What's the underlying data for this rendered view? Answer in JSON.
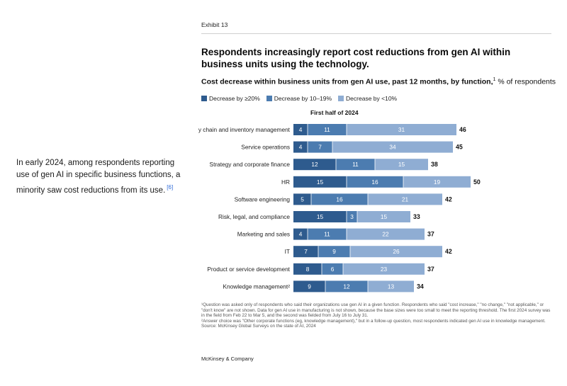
{
  "side_text": {
    "body": "In early 2024, among respondents reporting use of gen AI in specific business functions, a minority saw cost reductions from its use.",
    "ref": "[6]"
  },
  "exhibit_label": "Exhibit 13",
  "brand": "McKinsey & Company",
  "footnotes": {
    "note1": "¹Question was asked only of respondents who said their organizations use gen AI in a given function. Respondents who said \"cost increase,\" \"no change,\" \"not applicable,\" or \"don't know\" are not shown. Data for gen AI use in manufacturing is not shown, because the base sizes were too small to meet the reporting threshold. The first 2024 survey was in the field from Feb 22 to Mar 5, and the second was fielded from July 16 to July 31.",
    "note2": "²Answer choice was \"Other corporate functions (eg, knowledge management),\" but in a follow-up question, most respondents indicated gen AI use in knowledge management.",
    "source": "Source: McKinsey Global Surveys on the state of AI, 2024"
  },
  "colors": {
    "series1": "#2e5b8e",
    "series2": "#4c7cb0",
    "series3": "#8fadd3"
  },
  "chart_data": {
    "type": "bar",
    "orientation": "horizontal",
    "stacked": true,
    "title": "Respondents increasingly report cost reductions from gen AI within business units using the technology.",
    "subtitle_bold": "Cost decrease within business units from gen AI use, past 12 months, by function,",
    "subtitle_sup": "1",
    "subtitle_unit": " % of respondents",
    "period_label": "First half of 2024",
    "legend_position": "top-left",
    "grid": false,
    "categories": [
      "Supply chain and inventory management",
      "Service operations",
      "Strategy and corporate finance",
      "HR",
      "Software engineering",
      "Risk, legal, and compliance",
      "Marketing and sales",
      "IT",
      "Product or service development",
      "Knowledge management²"
    ],
    "series": [
      {
        "name": "Decrease by ≥20%",
        "values": [
          4,
          4,
          12,
          15,
          5,
          15,
          4,
          7,
          8,
          9
        ]
      },
      {
        "name": "Decrease by 10–19%",
        "values": [
          11,
          7,
          11,
          16,
          16,
          3,
          11,
          9,
          6,
          12
        ]
      },
      {
        "name": "Decrease by <10%",
        "values": [
          31,
          34,
          15,
          19,
          21,
          15,
          22,
          26,
          23,
          13
        ]
      }
    ],
    "totals": [
      46,
      45,
      38,
      50,
      42,
      33,
      37,
      42,
      37,
      34
    ]
  }
}
